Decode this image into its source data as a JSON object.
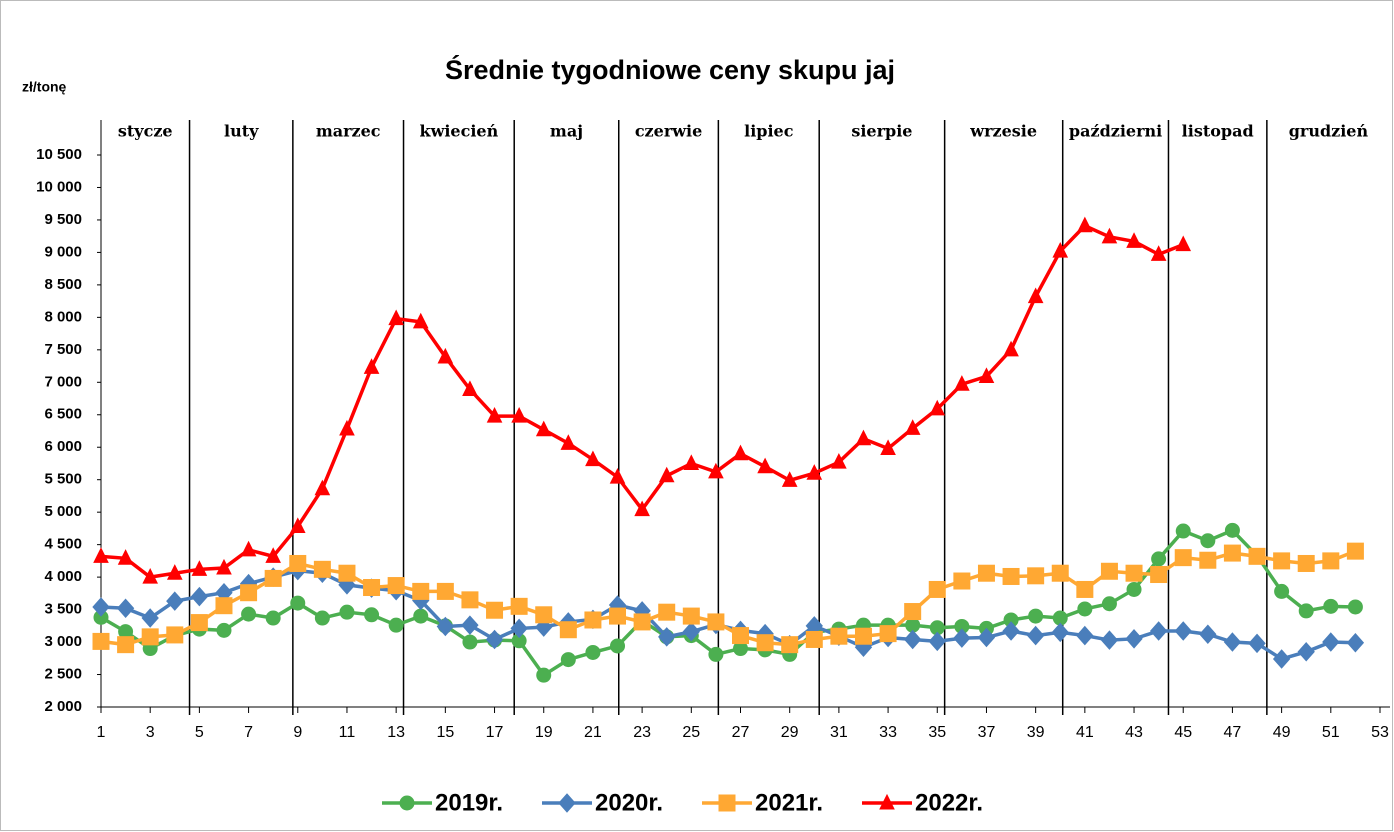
{
  "chart_data": {
    "type": "line",
    "title": "Średnie tygodniowe ceny skupu jaj",
    "ylabel": "zł/tonę",
    "months": [
      "stycze",
      "luty",
      "marzec",
      "kwiecień",
      "maj",
      "czerwie",
      "lipiec",
      "sierpie",
      "wrzesie",
      "październi",
      "listopad",
      "grudzień"
    ],
    "month_starts": [
      1,
      4.6,
      8.8,
      13.3,
      17.8,
      22.05,
      26.1,
      30.2,
      35.3,
      40.1,
      44.4,
      48.4
    ],
    "x": [
      1,
      2,
      3,
      4,
      5,
      6,
      7,
      8,
      9,
      10,
      11,
      12,
      13,
      14,
      15,
      16,
      17,
      18,
      19,
      20,
      21,
      22,
      23,
      24,
      25,
      26,
      27,
      28,
      29,
      30,
      31,
      32,
      33,
      34,
      35,
      36,
      37,
      38,
      39,
      40,
      41,
      42,
      43,
      44,
      45,
      46,
      47,
      48,
      49,
      50,
      51,
      52
    ],
    "series": [
      {
        "name": "2019r.",
        "color": "#4caf50",
        "marker": "circle",
        "values": [
          3380,
          3160,
          2900,
          3100,
          3200,
          3180,
          3430,
          3370,
          3600,
          3370,
          3460,
          3420,
          3260,
          3400,
          3250,
          3000,
          3030,
          3020,
          2490,
          2730,
          2840,
          2940,
          3330,
          3080,
          3100,
          2810,
          2900,
          2880,
          2810,
          3150,
          3200,
          3260,
          3260,
          3260,
          3220,
          3240,
          3210,
          3340,
          3400,
          3370,
          3510,
          3590,
          3810,
          4280,
          4710,
          4560,
          4720,
          4330,
          3780,
          3480,
          3550,
          3540
        ]
      },
      {
        "name": "2020r.",
        "color": "#4a7ebb",
        "marker": "diamond",
        "values": [
          3540,
          3520,
          3370,
          3630,
          3700,
          3760,
          3900,
          4000,
          4100,
          4060,
          3880,
          3830,
          3790,
          3640,
          3240,
          3260,
          3040,
          3210,
          3230,
          3310,
          3350,
          3570,
          3480,
          3080,
          3160,
          3270,
          3180,
          3130,
          2960,
          3250,
          3090,
          2920,
          3070,
          3040,
          3010,
          3060,
          3070,
          3170,
          3100,
          3150,
          3100,
          3030,
          3050,
          3170,
          3170,
          3120,
          3000,
          2980,
          2740,
          2850,
          3000,
          2990
        ]
      },
      {
        "name": "2021r.",
        "color": "#ffa833",
        "marker": "square",
        "values": [
          3010,
          2960,
          3080,
          3110,
          3300,
          3560,
          3760,
          3980,
          4210,
          4120,
          4060,
          3840,
          3870,
          3780,
          3780,
          3650,
          3490,
          3550,
          3420,
          3190,
          3340,
          3400,
          3310,
          3460,
          3400,
          3310,
          3100,
          2990,
          2960,
          3040,
          3090,
          3090,
          3130,
          3470,
          3810,
          3940,
          4060,
          4010,
          4020,
          4060,
          3810,
          4090,
          4060,
          4040,
          4300,
          4260,
          4370,
          4320,
          4250,
          4210,
          4250,
          4400
        ]
      },
      {
        "name": "2022r.",
        "color": "#ff0000",
        "marker": "triangle",
        "values": [
          4320,
          4290,
          4000,
          4060,
          4120,
          4140,
          4420,
          4320,
          4780,
          5360,
          6280,
          7230,
          7980,
          7930,
          7390,
          6890,
          6480,
          6480,
          6270,
          6060,
          5810,
          5540,
          5040,
          5560,
          5750,
          5620,
          5900,
          5700,
          5490,
          5600,
          5770,
          6130,
          5980,
          6290,
          6590,
          6970,
          7090,
          7500,
          8320,
          9020,
          9410,
          9240,
          9170,
          8970,
          9120,
          null,
          null,
          null,
          null,
          null,
          null,
          null
        ]
      }
    ],
    "xlim": [
      1,
      53
    ],
    "xticks": [
      1,
      3,
      5,
      7,
      9,
      11,
      13,
      15,
      17,
      19,
      21,
      23,
      25,
      27,
      29,
      31,
      33,
      35,
      37,
      39,
      41,
      43,
      45,
      47,
      49,
      51,
      53
    ],
    "ylim": [
      2000,
      10500
    ],
    "yticks": [
      {
        "value": 2000,
        "label": "2 000"
      },
      {
        "value": 2500,
        "label": "2 500"
      },
      {
        "value": 3000,
        "label": "3 000"
      },
      {
        "value": 3500,
        "label": "3 500"
      },
      {
        "value": 4000,
        "label": "4 000"
      },
      {
        "value": 4500,
        "label": "4 500"
      },
      {
        "value": 5000,
        "label": "5 000"
      },
      {
        "value": 5500,
        "label": "5 500"
      },
      {
        "value": 6000,
        "label": "6 000"
      },
      {
        "value": 6500,
        "label": "6 500"
      },
      {
        "value": 7000,
        "label": "7 000"
      },
      {
        "value": 7500,
        "label": "7 500"
      },
      {
        "value": 8000,
        "label": "8 000"
      },
      {
        "value": 8500,
        "label": "8 500"
      },
      {
        "value": 9000,
        "label": "9 000"
      },
      {
        "value": 9500,
        "label": "9 500"
      },
      {
        "value": 10000,
        "label": "10 000"
      },
      {
        "value": 10500,
        "label": "10 500"
      }
    ],
    "legend": "bottom"
  }
}
